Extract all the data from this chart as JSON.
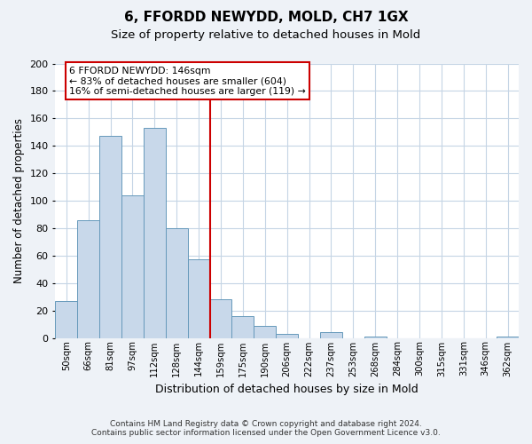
{
  "title": "6, FFORDD NEWYDD, MOLD, CH7 1GX",
  "subtitle": "Size of property relative to detached houses in Mold",
  "xlabel": "Distribution of detached houses by size in Mold",
  "ylabel": "Number of detached properties",
  "bar_labels": [
    "50sqm",
    "66sqm",
    "81sqm",
    "97sqm",
    "112sqm",
    "128sqm",
    "144sqm",
    "159sqm",
    "175sqm",
    "190sqm",
    "206sqm",
    "222sqm",
    "237sqm",
    "253sqm",
    "268sqm",
    "284sqm",
    "300sqm",
    "315sqm",
    "331sqm",
    "346sqm",
    "362sqm"
  ],
  "bar_values": [
    27,
    86,
    147,
    104,
    153,
    80,
    57,
    28,
    16,
    9,
    3,
    0,
    4,
    0,
    1,
    0,
    0,
    0,
    0,
    0,
    1
  ],
  "bar_color": "#c8d8ea",
  "bar_edge_color": "#6699bb",
  "vline_x": 6.5,
  "vline_color": "#cc0000",
  "annotation_text_line1": "6 FFORDD NEWYDD: 146sqm",
  "annotation_text_line2": "← 83% of detached houses are smaller (604)",
  "annotation_text_line3": "16% of semi-detached houses are larger (119) →",
  "annotation_box_color": "#ffffff",
  "annotation_box_edge": "#cc0000",
  "ylim": [
    0,
    200
  ],
  "yticks": [
    0,
    20,
    40,
    60,
    80,
    100,
    120,
    140,
    160,
    180,
    200
  ],
  "footer_line1": "Contains HM Land Registry data © Crown copyright and database right 2024.",
  "footer_line2": "Contains public sector information licensed under the Open Government Licence v3.0.",
  "bg_color": "#eef2f7",
  "plot_bg_color": "#ffffff",
  "grid_color": "#c5d5e5"
}
